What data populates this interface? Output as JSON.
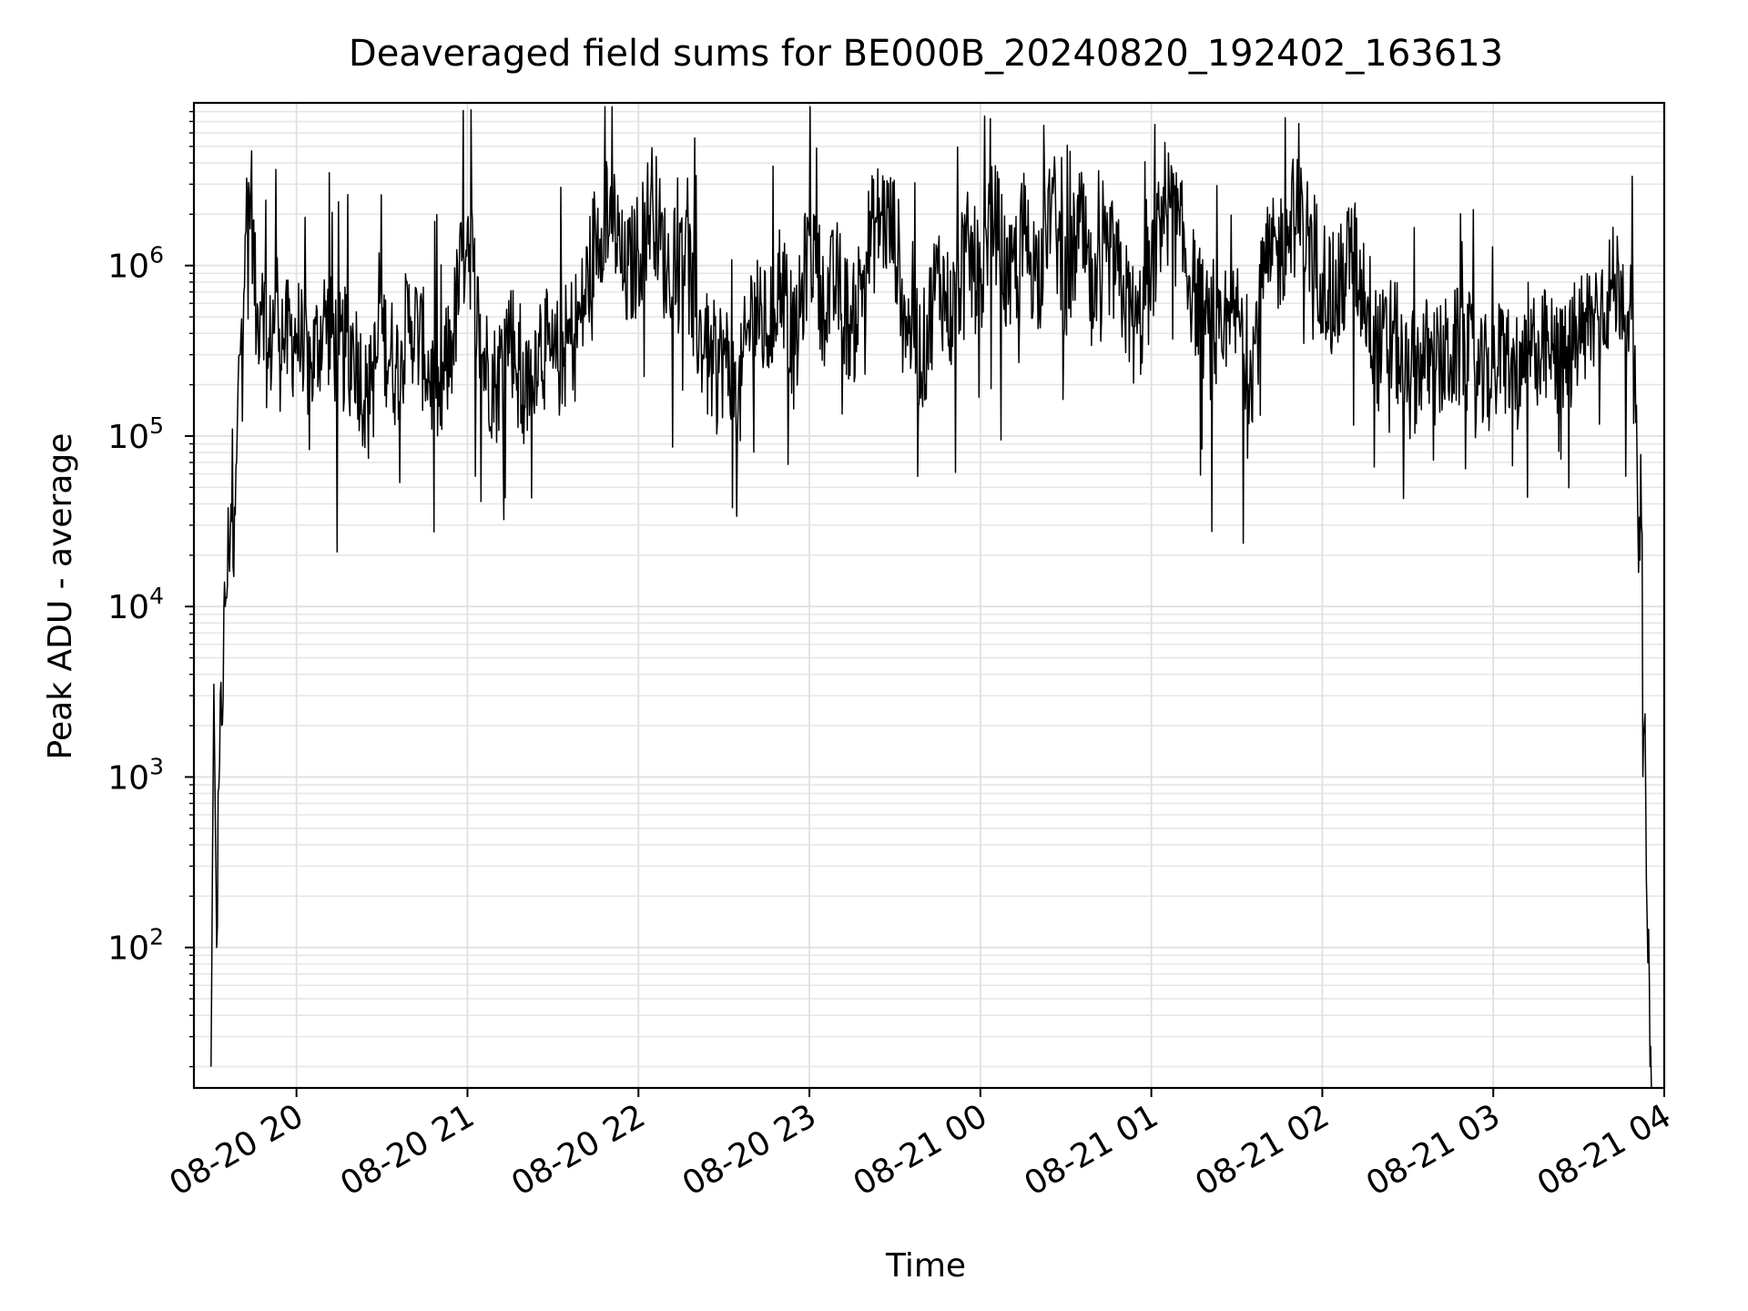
{
  "chart_data": {
    "type": "line",
    "title": "Deaveraged field sums for BE000B_20240820_192402_163613",
    "xlabel": "Time",
    "ylabel": "Peak ADU - average",
    "yscale": "log",
    "xlim": [
      "08-20 19:24",
      "08-21 04:00"
    ],
    "ylim": [
      15,
      9000000
    ],
    "grid": true,
    "x_ticks": [
      "08-20 20",
      "08-20 21",
      "08-20 22",
      "08-20 23",
      "08-21 00",
      "08-21 01",
      "08-21 02",
      "08-21 03",
      "08-21 04"
    ],
    "y_ticks": [
      {
        "base": "10",
        "exp": "2",
        "value": 100
      },
      {
        "base": "10",
        "exp": "3",
        "value": 1000
      },
      {
        "base": "10",
        "exp": "4",
        "value": 10000
      },
      {
        "base": "10",
        "exp": "5",
        "value": 100000
      },
      {
        "base": "10",
        "exp": "6",
        "value": 1000000
      }
    ],
    "series": [
      {
        "color": "#000000",
        "x": [
          "08-20 19:30",
          "08-20 19:31",
          "08-20 19:32",
          "08-20 19:33",
          "08-20 19:35",
          "08-20 19:37",
          "08-20 19:38",
          "08-20 19:39",
          "08-20 19:40",
          "08-20 19:42",
          "08-20 19:44",
          "08-20 19:46",
          "08-20 19:48",
          "08-20 19:50",
          "08-20 19:53",
          "08-20 19:56",
          "08-20 20:00",
          "08-20 20:05",
          "08-20 20:10",
          "08-20 20:15",
          "08-20 20:20",
          "08-20 20:25",
          "08-20 20:30",
          "08-20 20:35",
          "08-20 20:40",
          "08-20 20:45",
          "08-20 20:50",
          "08-20 20:55",
          "08-20 21:00",
          "08-20 21:05",
          "08-20 21:10",
          "08-20 21:15",
          "08-20 21:20",
          "08-20 21:25",
          "08-20 21:30",
          "08-20 21:35",
          "08-20 21:40",
          "08-20 21:45",
          "08-20 21:50",
          "08-20 21:55",
          "08-20 22:00",
          "08-20 22:05",
          "08-20 22:10",
          "08-20 22:15",
          "08-20 22:20",
          "08-20 22:25",
          "08-20 22:30",
          "08-20 22:35",
          "08-20 22:40",
          "08-20 22:45",
          "08-20 22:50",
          "08-20 22:55",
          "08-20 23:00",
          "08-20 23:05",
          "08-20 23:10",
          "08-20 23:15",
          "08-20 23:20",
          "08-20 23:25",
          "08-20 23:30",
          "08-20 23:35",
          "08-20 23:40",
          "08-20 23:45",
          "08-20 23:50",
          "08-20 23:55",
          "08-21 00:00",
          "08-21 00:05",
          "08-21 00:10",
          "08-21 00:15",
          "08-21 00:20",
          "08-21 00:25",
          "08-21 00:30",
          "08-21 00:35",
          "08-21 00:40",
          "08-21 00:45",
          "08-21 00:50",
          "08-21 00:55",
          "08-21 01:00",
          "08-21 01:05",
          "08-21 01:10",
          "08-21 01:15",
          "08-21 01:20",
          "08-21 01:25",
          "08-21 01:30",
          "08-21 01:35",
          "08-21 01:40",
          "08-21 01:45",
          "08-21 01:50",
          "08-21 01:55",
          "08-21 02:00",
          "08-21 02:05",
          "08-21 02:10",
          "08-21 02:15",
          "08-21 02:20",
          "08-21 02:25",
          "08-21 02:30",
          "08-21 02:35",
          "08-21 02:40",
          "08-21 02:45",
          "08-21 02:50",
          "08-21 02:55",
          "08-21 03:00",
          "08-21 03:05",
          "08-21 03:10",
          "08-21 03:15",
          "08-21 03:20",
          "08-21 03:25",
          "08-21 03:30",
          "08-21 03:35",
          "08-21 03:40",
          "08-21 03:45",
          "08-21 03:48",
          "08-21 03:50",
          "08-21 03:52",
          "08-21 03:53",
          "08-21 03:54",
          "08-21 03:55",
          "08-21 03:56"
        ],
        "y": [
          20,
          3500,
          100,
          1200,
          10000,
          40000,
          15000,
          70000,
          300000,
          1500000,
          3000000,
          400000,
          900000,
          250000,
          700000,
          350000,
          400000,
          250000,
          500000,
          300000,
          350000,
          150000,
          400000,
          250000,
          500000,
          300000,
          150000,
          400000,
          1800000,
          300000,
          200000,
          450000,
          150000,
          400000,
          250000,
          350000,
          500000,
          1500000,
          2500000,
          800000,
          1200000,
          2500000,
          900000,
          1800000,
          500000,
          250000,
          300000,
          150000,
          600000,
          400000,
          900000,
          300000,
          1500000,
          600000,
          800000,
          400000,
          1200000,
          2000000,
          1500000,
          400000,
          300000,
          900000,
          500000,
          1200000,
          800000,
          2000000,
          700000,
          1500000,
          900000,
          2500000,
          700000,
          1800000,
          500000,
          1200000,
          700000,
          400000,
          900000,
          2500000,
          1500000,
          700000,
          400000,
          300000,
          500000,
          250000,
          900000,
          1200000,
          2000000,
          1500000,
          900000,
          600000,
          1200000,
          700000,
          300000,
          400000,
          200000,
          300000,
          250000,
          300000,
          350000,
          200000,
          250000,
          300000,
          200000,
          350000,
          300000,
          250000,
          400000,
          500000,
          700000,
          800000,
          600000,
          120000,
          30000,
          2000,
          150,
          20,
          15
        ]
      }
    ]
  }
}
